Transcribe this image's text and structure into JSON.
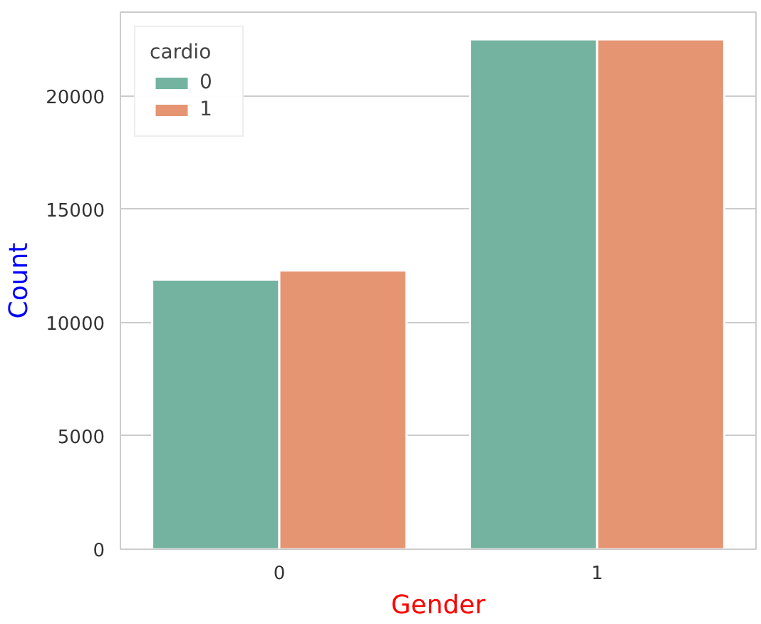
{
  "chart_data": {
    "type": "bar",
    "xlabel": "Gender",
    "ylabel": "Count",
    "legend_title": "cardio",
    "categories": [
      "0",
      "1"
    ],
    "series": [
      {
        "name": "0",
        "color": "#73b3a0",
        "values": [
          11900,
          22500
        ]
      },
      {
        "name": "1",
        "color": "#e69573",
        "values": [
          12300,
          22500
        ]
      }
    ],
    "ylim": [
      0,
      23700
    ],
    "yticks": [
      0,
      5000,
      10000,
      15000,
      20000
    ],
    "grid": "y",
    "legend": "top left"
  }
}
